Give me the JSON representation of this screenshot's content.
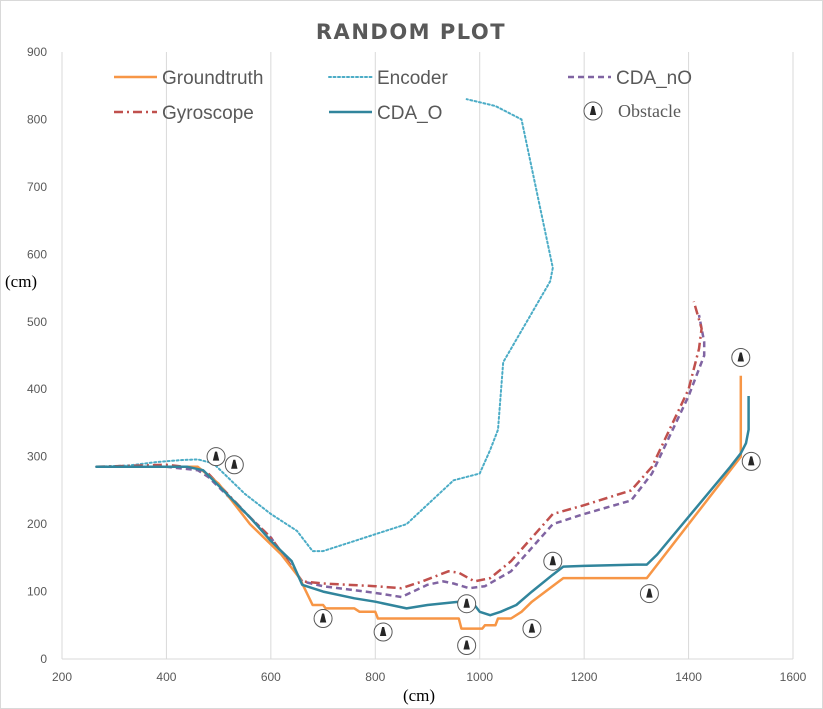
{
  "chart_data": {
    "type": "line",
    "title": "RANDOM PLOT",
    "xlabel": "(cm)",
    "ylabel": "(cm)",
    "xlim": [
      200,
      1600
    ],
    "ylim": [
      0,
      900
    ],
    "x_ticks": [
      200,
      400,
      600,
      800,
      1000,
      1200,
      1400,
      1600
    ],
    "y_ticks": [
      0,
      100,
      200,
      300,
      400,
      500,
      600,
      700,
      800,
      900
    ],
    "grid": "vertical",
    "legend": "top",
    "series": [
      {
        "name": "Groundtruth",
        "color": "#f79646",
        "dash": "solid",
        "points": [
          [
            265,
            285
          ],
          [
            460,
            285
          ],
          [
            500,
            260
          ],
          [
            560,
            200
          ],
          [
            620,
            155
          ],
          [
            655,
            120
          ],
          [
            680,
            80
          ],
          [
            700,
            80
          ],
          [
            705,
            75
          ],
          [
            740,
            75
          ],
          [
            760,
            75
          ],
          [
            770,
            70
          ],
          [
            800,
            70
          ],
          [
            805,
            60
          ],
          [
            820,
            60
          ],
          [
            830,
            60
          ],
          [
            960,
            60
          ],
          [
            965,
            45
          ],
          [
            1005,
            45
          ],
          [
            1010,
            50
          ],
          [
            1030,
            50
          ],
          [
            1035,
            60
          ],
          [
            1060,
            60
          ],
          [
            1080,
            70
          ],
          [
            1100,
            85
          ],
          [
            1160,
            120
          ],
          [
            1320,
            120
          ],
          [
            1500,
            300
          ],
          [
            1500,
            420
          ]
        ]
      },
      {
        "name": "Encoder",
        "color": "#4bacc6",
        "dash": "dotted",
        "points": [
          [
            265,
            285
          ],
          [
            330,
            287
          ],
          [
            380,
            292
          ],
          [
            430,
            295
          ],
          [
            460,
            296
          ],
          [
            490,
            290
          ],
          [
            550,
            245
          ],
          [
            600,
            215
          ],
          [
            650,
            190
          ],
          [
            680,
            160
          ],
          [
            700,
            160
          ],
          [
            760,
            175
          ],
          [
            860,
            200
          ],
          [
            950,
            265
          ],
          [
            1000,
            275
          ],
          [
            1020,
            310
          ],
          [
            1035,
            340
          ],
          [
            1045,
            440
          ],
          [
            1090,
            500
          ],
          [
            1135,
            560
          ],
          [
            1140,
            580
          ],
          [
            1080,
            800
          ],
          [
            1030,
            820
          ],
          [
            975,
            830
          ]
        ]
      },
      {
        "name": "CDA_nO",
        "color": "#8064a2",
        "dash": "dashed",
        "points": [
          [
            265,
            285
          ],
          [
            400,
            285
          ],
          [
            460,
            280
          ],
          [
            480,
            270
          ],
          [
            560,
            210
          ],
          [
            600,
            180
          ],
          [
            660,
            115
          ],
          [
            700,
            108
          ],
          [
            800,
            98
          ],
          [
            850,
            92
          ],
          [
            900,
            110
          ],
          [
            930,
            115
          ],
          [
            950,
            112
          ],
          [
            980,
            105
          ],
          [
            1010,
            108
          ],
          [
            1060,
            130
          ],
          [
            1100,
            165
          ],
          [
            1140,
            200
          ],
          [
            1200,
            215
          ],
          [
            1290,
            235
          ],
          [
            1330,
            275
          ],
          [
            1400,
            390
          ],
          [
            1430,
            450
          ],
          [
            1430,
            470
          ],
          [
            1420,
            510
          ]
        ]
      },
      {
        "name": "Gyroscope",
        "color": "#c0504d",
        "dash": "dashdot",
        "points": [
          [
            265,
            285
          ],
          [
            400,
            288
          ],
          [
            460,
            283
          ],
          [
            480,
            275
          ],
          [
            560,
            210
          ],
          [
            600,
            180
          ],
          [
            660,
            115
          ],
          [
            700,
            112
          ],
          [
            800,
            108
          ],
          [
            850,
            105
          ],
          [
            890,
            115
          ],
          [
            940,
            130
          ],
          [
            960,
            128
          ],
          [
            990,
            115
          ],
          [
            1020,
            120
          ],
          [
            1060,
            145
          ],
          [
            1100,
            180
          ],
          [
            1140,
            215
          ],
          [
            1200,
            228
          ],
          [
            1290,
            250
          ],
          [
            1330,
            285
          ],
          [
            1400,
            400
          ],
          [
            1420,
            460
          ],
          [
            1425,
            490
          ],
          [
            1410,
            530
          ]
        ]
      },
      {
        "name": "CDA_O",
        "color": "#31859c",
        "dash": "solid",
        "points": [
          [
            265,
            285
          ],
          [
            440,
            285
          ],
          [
            470,
            280
          ],
          [
            490,
            265
          ],
          [
            560,
            210
          ],
          [
            600,
            175
          ],
          [
            640,
            145
          ],
          [
            660,
            110
          ],
          [
            700,
            100
          ],
          [
            760,
            90
          ],
          [
            800,
            85
          ],
          [
            860,
            75
          ],
          [
            900,
            80
          ],
          [
            960,
            85
          ],
          [
            990,
            80
          ],
          [
            1000,
            70
          ],
          [
            1020,
            65
          ],
          [
            1040,
            70
          ],
          [
            1070,
            80
          ],
          [
            1100,
            100
          ],
          [
            1140,
            125
          ],
          [
            1160,
            137
          ],
          [
            1200,
            138
          ],
          [
            1300,
            140
          ],
          [
            1320,
            140
          ],
          [
            1340,
            155
          ],
          [
            1480,
            285
          ],
          [
            1500,
            305
          ],
          [
            1510,
            320
          ],
          [
            1515,
            340
          ],
          [
            1515,
            390
          ]
        ]
      }
    ],
    "obstacles": {
      "name": "Obstacle",
      "points": [
        [
          495,
          300
        ],
        [
          530,
          288
        ],
        [
          700,
          60
        ],
        [
          815,
          40
        ],
        [
          975,
          20
        ],
        [
          975,
          82
        ],
        [
          1100,
          45
        ],
        [
          1140,
          145
        ],
        [
          1325,
          97
        ],
        [
          1500,
          447
        ],
        [
          1520,
          293
        ]
      ]
    }
  }
}
